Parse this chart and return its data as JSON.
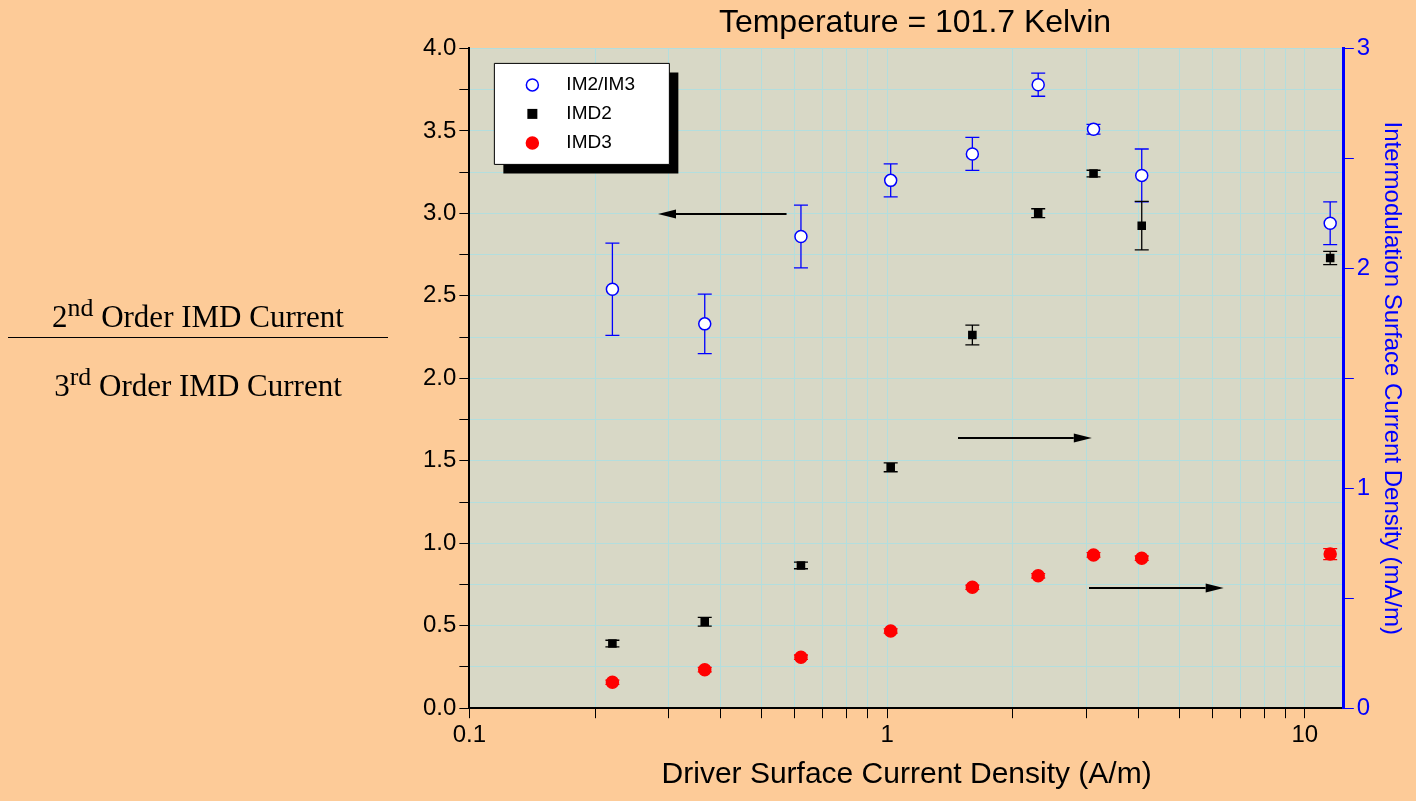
{
  "chart_data": {
    "type": "scatter",
    "title": "Temperature = 101.7 Kelvin",
    "xlabel": "Driver Surface Current Density (A/m)",
    "ylabel": "2$^{nd}$ Order IMD Current 3$^{rd}$ Order IMD Current",
    "y2label": "Intermodulation Surface Current Density (mA/m)",
    "x": [
      0.22,
      0.366,
      0.622,
      1.02,
      1.6,
      2.3,
      3.12,
      4.07,
      11.5
    ],
    "series": [
      {
        "name": "IM2/IM3",
        "color": "#0000ff",
        "marker": "circle",
        "axis": "y",
        "values": [
          2.54,
          2.33,
          2.86,
          3.2,
          3.36,
          3.78,
          3.51,
          3.23,
          2.94
        ],
        "errors": [
          0.28,
          0.18,
          0.19,
          0.1,
          0.1,
          0.07,
          0.03,
          0.16,
          0.13
        ]
      },
      {
        "name": "IMD2",
        "color": "#000000",
        "marker": "square",
        "axis": "y2",
        "values": [
          0.294,
          0.393,
          0.649,
          1.095,
          1.697,
          2.251,
          2.431,
          2.194,
          2.047
        ],
        "errors": [
          0.015,
          0.02,
          0.015,
          0.02,
          0.045,
          0.02,
          0.015,
          0.11,
          0.03
        ]
      },
      {
        "name": "IMD3",
        "color": "#ff0000",
        "marker": "circle",
        "axis": "y2",
        "values": [
          0.118,
          0.175,
          0.232,
          0.351,
          0.55,
          0.602,
          0.697,
          0.682,
          0.701
        ],
        "errors": [
          0.01,
          0.01,
          0.01,
          0.01,
          0.01,
          0.01,
          0.01,
          0.01,
          0.025
        ]
      }
    ],
    "log": "x",
    "xlim": [
      0.1,
      12.4
    ],
    "xticks": [
      0.1,
      {
        "value": 0.2,
        "label": null
      },
      {
        "value": 0.3,
        "label": null
      },
      {
        "value": 0.4,
        "label": null
      },
      {
        "value": 0.5,
        "label": null
      },
      {
        "value": 0.6,
        "label": null
      },
      {
        "value": 0.7,
        "label": null
      },
      {
        "value": 0.8,
        "label": null
      },
      {
        "value": 0.9,
        "label": null
      },
      1,
      {
        "value": 2,
        "label": null
      },
      {
        "value": 3,
        "label": null
      },
      {
        "value": 4,
        "label": null
      },
      {
        "value": 5,
        "label": null
      },
      {
        "value": 6,
        "label": null
      },
      {
        "value": 7,
        "label": null
      },
      {
        "value": 8,
        "label": null
      },
      {
        "value": 9,
        "label": null
      },
      10
    ],
    "ylim": [
      0,
      4
    ],
    "yticks": [
      {
        "value": 0,
        "label": "0.0"
      },
      {
        "value": 0.25,
        "label": null
      },
      0.5,
      {
        "value": 0.75,
        "label": null
      },
      {
        "value": 1,
        "label": "1.0"
      },
      {
        "value": 1.25,
        "label": null
      },
      1.5,
      {
        "value": 1.75,
        "label": null
      },
      {
        "value": 2,
        "label": "2.0"
      },
      {
        "value": 2.25,
        "label": null
      },
      2.5,
      {
        "value": 2.75,
        "label": null
      },
      {
        "value": 3,
        "label": "3.0"
      },
      {
        "value": 3.25,
        "label": null
      },
      3.5,
      {
        "value": 3.75,
        "label": null
      },
      {
        "value": 4,
        "label": "4.0"
      }
    ],
    "y2lim": [
      0,
      3
    ],
    "y2ticks": [
      0,
      {
        "value": 0.5,
        "label": null
      },
      1,
      {
        "value": 1.5,
        "label": null
      },
      2,
      {
        "value": 2.5,
        "label": null
      },
      3
    ],
    "grid": true,
    "legend": "top left"
  }
}
